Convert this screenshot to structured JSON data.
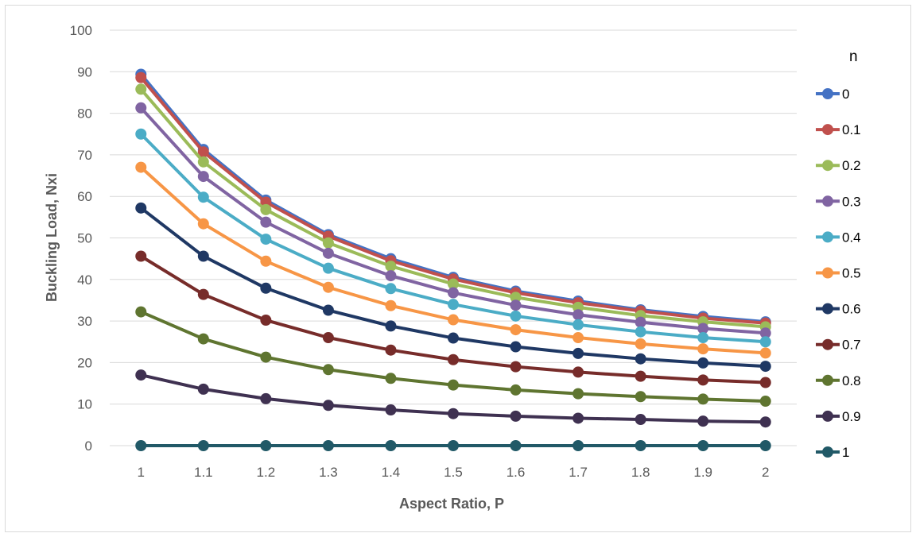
{
  "chart_data": {
    "type": "line",
    "title": "",
    "xlabel": "Aspect Ratio, P",
    "ylabel": "Buckling Load, Nxi",
    "x": [
      "1",
      "1.1",
      "1.2",
      "1.3",
      "1.4",
      "1.5",
      "1.6",
      "1.7",
      "1.8",
      "1.9",
      "2"
    ],
    "ylim": [
      0,
      100
    ],
    "yticks": [
      "0",
      "10",
      "20",
      "30",
      "40",
      "50",
      "60",
      "70",
      "80",
      "90",
      "100"
    ],
    "grid": true,
    "legend": {
      "title": "n",
      "position": "right"
    },
    "series": [
      {
        "name": "0",
        "color": "#4472c4",
        "values": [
          89.4,
          71.3,
          59.1,
          50.8,
          45.0,
          40.5,
          37.2,
          34.8,
          32.7,
          31.1,
          29.8
        ]
      },
      {
        "name": "0.1",
        "color": "#c0504d",
        "values": [
          88.6,
          70.7,
          58.6,
          50.4,
          44.5,
          40.1,
          36.8,
          34.4,
          32.4,
          30.7,
          29.5
        ]
      },
      {
        "name": "0.2",
        "color": "#9bbb59",
        "values": [
          85.8,
          68.3,
          56.8,
          48.8,
          43.2,
          38.9,
          35.7,
          33.3,
          31.3,
          29.8,
          28.6
        ]
      },
      {
        "name": "0.3",
        "color": "#8064a2",
        "values": [
          81.3,
          64.8,
          53.8,
          46.3,
          40.9,
          36.8,
          33.8,
          31.5,
          29.7,
          28.2,
          27.1
        ]
      },
      {
        "name": "0.4",
        "color": "#4bacc6",
        "values": [
          75.0,
          59.8,
          49.7,
          42.7,
          37.8,
          34.0,
          31.2,
          29.1,
          27.4,
          26.0,
          25.0
        ]
      },
      {
        "name": "0.5",
        "color": "#f79646",
        "values": [
          67.0,
          53.4,
          44.4,
          38.1,
          33.7,
          30.3,
          27.9,
          26.0,
          24.5,
          23.3,
          22.3
        ]
      },
      {
        "name": "0.6",
        "color": "#1f3864",
        "values": [
          57.2,
          45.6,
          37.9,
          32.6,
          28.8,
          25.9,
          23.8,
          22.2,
          20.9,
          19.9,
          19.1
        ]
      },
      {
        "name": "0.7",
        "color": "#772c2a",
        "values": [
          45.6,
          36.4,
          30.2,
          26.0,
          23.0,
          20.7,
          19.0,
          17.7,
          16.7,
          15.8,
          15.2
        ]
      },
      {
        "name": "0.8",
        "color": "#5f7530",
        "values": [
          32.2,
          25.7,
          21.3,
          18.3,
          16.2,
          14.6,
          13.4,
          12.5,
          11.8,
          11.2,
          10.7
        ]
      },
      {
        "name": "0.9",
        "color": "#3f3151",
        "values": [
          17.0,
          13.6,
          11.3,
          9.7,
          8.6,
          7.7,
          7.1,
          6.6,
          6.3,
          5.9,
          5.7
        ]
      },
      {
        "name": "1",
        "color": "#215967",
        "values": [
          0,
          0,
          0,
          0,
          0,
          0,
          0,
          0,
          0,
          0,
          0
        ]
      }
    ]
  }
}
